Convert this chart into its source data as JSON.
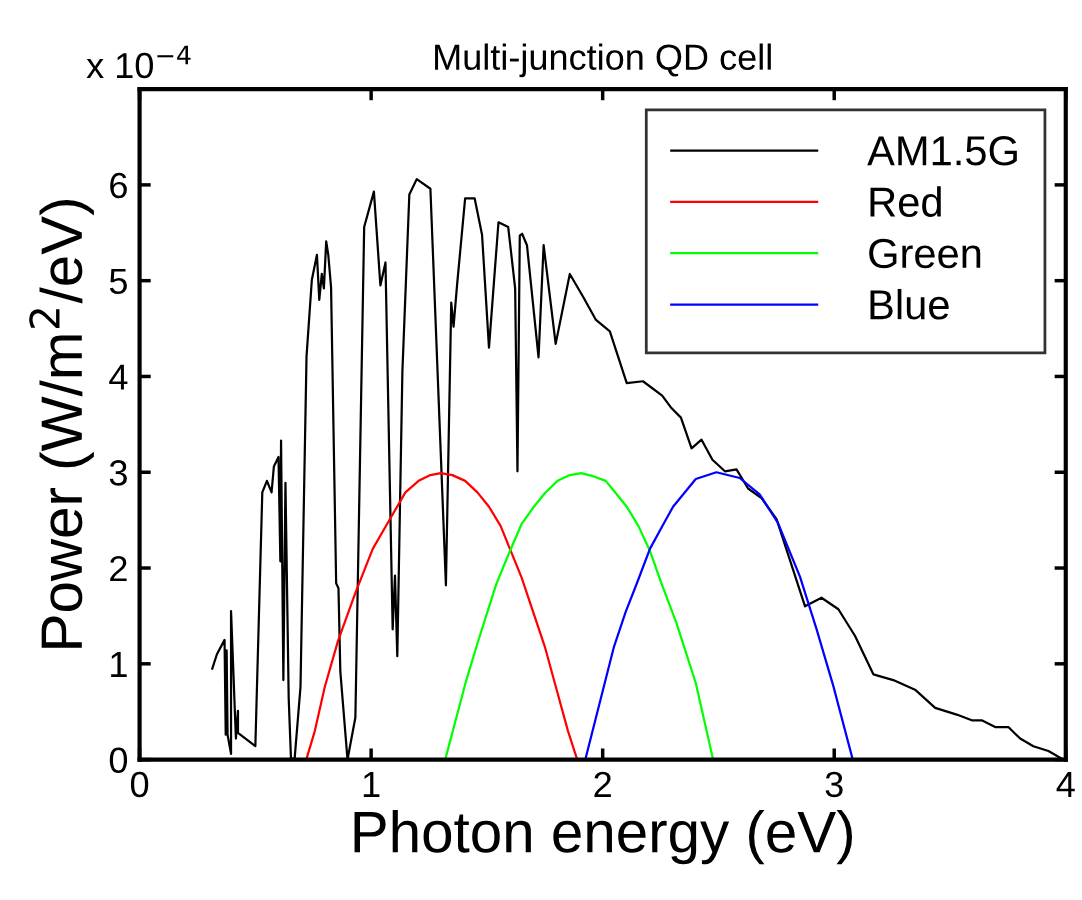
{
  "chart_data": {
    "type": "line",
    "title": "Multi-junction QD cell",
    "xlabel": "Photon energy (eV)",
    "ylabel": "Power (W/m$^{2}$/eV)",
    "annotations": [
      "x 10$^{−4}$"
    ],
    "xlim": [
      0,
      4
    ],
    "xticks": [
      0,
      1,
      2,
      3,
      4
    ],
    "ylim": [
      0,
      7
    ],
    "yticks": [
      0,
      1,
      2,
      3,
      4,
      5,
      6,
      {
        "value": 7,
        "label": null
      }
    ],
    "grid": false,
    "legend": "top right",
    "marker": "none",
    "line_style": "solid",
    "series": [
      {
        "name": "AM1.5G",
        "color": "#000000",
        "x": [
          0.314,
          0.334,
          0.367,
          0.372,
          0.376,
          0.38,
          0.395,
          0.395,
          0.416,
          0.425,
          0.425,
          0.5,
          0.53,
          0.55,
          0.57,
          0.58,
          0.6,
          0.608,
          0.611,
          0.621,
          0.63,
          0.644,
          0.654,
          0.67,
          0.695,
          0.721,
          0.744,
          0.766,
          0.776,
          0.787,
          0.796,
          0.806,
          0.815,
          0.827,
          0.849,
          0.859,
          0.867,
          0.898,
          0.932,
          0.97,
          1.012,
          1.04,
          1.062,
          1.093,
          1.103,
          1.113,
          1.135,
          1.165,
          1.197,
          1.256,
          1.323,
          1.346,
          1.356,
          1.371,
          1.406,
          1.447,
          1.479,
          1.509,
          1.55,
          1.592,
          1.622,
          1.632,
          1.642,
          1.652,
          1.673,
          1.723,
          1.745,
          1.797,
          1.858,
          1.916,
          1.971,
          2.031,
          2.104,
          2.174,
          2.257,
          2.297,
          2.338,
          2.384,
          2.427,
          2.474,
          2.528,
          2.578,
          2.628,
          2.686,
          2.751,
          2.874,
          2.945,
          3.018,
          3.09,
          3.169,
          3.255,
          3.349,
          3.436,
          3.529,
          3.594,
          3.637,
          3.695,
          3.752,
          3.803,
          3.86,
          3.925,
          3.99
        ],
        "values": [
          0.95,
          1.1,
          1.25,
          0.26,
          1.14,
          0.26,
          0.06,
          1.55,
          0.22,
          0.51,
          0.28,
          0.14,
          2.79,
          2.91,
          2.79,
          3.06,
          3.16,
          2.07,
          3.33,
          0.83,
          2.89,
          0.64,
          0.0,
          0.02,
          0.76,
          4.21,
          5.01,
          5.27,
          4.8,
          5.07,
          4.92,
          5.41,
          5.27,
          4.93,
          1.84,
          1.79,
          0.92,
          0.0,
          0.44,
          5.56,
          5.93,
          4.95,
          5.19,
          1.36,
          1.92,
          1.08,
          4.05,
          5.9,
          6.06,
          5.96,
          1.82,
          4.77,
          4.52,
          4.95,
          5.86,
          5.86,
          5.48,
          4.3,
          5.61,
          5.56,
          4.92,
          3.01,
          5.47,
          5.49,
          5.37,
          4.2,
          5.37,
          4.34,
          5.07,
          4.83,
          4.59,
          4.47,
          3.93,
          3.95,
          3.8,
          3.67,
          3.57,
          3.25,
          3.34,
          3.13,
          3.01,
          3.03,
          2.83,
          2.73,
          2.51,
          1.6,
          1.69,
          1.57,
          1.29,
          0.89,
          0.83,
          0.73,
          0.54,
          0.47,
          0.41,
          0.41,
          0.34,
          0.34,
          0.22,
          0.14,
          0.09,
          0.0
        ]
      },
      {
        "name": "Red",
        "color": "#ff0000",
        "x": [
          0.72,
          0.757,
          0.8,
          0.857,
          0.932,
          1.007,
          1.074,
          1.148,
          1.205,
          1.256,
          1.301,
          1.351,
          1.406,
          1.459,
          1.509,
          1.559,
          1.65,
          1.75,
          1.8,
          1.85,
          1.89
        ],
        "values": [
          0.0,
          0.3,
          0.76,
          1.24,
          1.74,
          2.2,
          2.48,
          2.79,
          2.91,
          2.97,
          2.99,
          2.97,
          2.91,
          2.79,
          2.64,
          2.44,
          1.9,
          1.18,
          0.74,
          0.3,
          0.0
        ]
      },
      {
        "name": "Green",
        "color": "#00ff00",
        "x": [
          1.32,
          1.41,
          1.46,
          1.54,
          1.6,
          1.65,
          1.703,
          1.75,
          1.805,
          1.858,
          1.908,
          1.957,
          2.013,
          2.057,
          2.104,
          2.154,
          2.204,
          2.257,
          2.318,
          2.402,
          2.477
        ],
        "values": [
          0.0,
          0.82,
          1.22,
          1.83,
          2.18,
          2.46,
          2.64,
          2.78,
          2.91,
          2.97,
          2.99,
          2.96,
          2.91,
          2.78,
          2.64,
          2.44,
          2.18,
          1.82,
          1.43,
          0.8,
          0.0
        ]
      },
      {
        "name": "Blue",
        "color": "#0000ff",
        "x": [
          1.925,
          1.99,
          2.049,
          2.099,
          2.154,
          2.204,
          2.265,
          2.304,
          2.402,
          2.491,
          2.592,
          2.678,
          2.757,
          2.852,
          2.924,
          2.996,
          3.08
        ],
        "values": [
          0.0,
          0.62,
          1.18,
          1.54,
          1.88,
          2.2,
          2.47,
          2.64,
          2.93,
          3.0,
          2.94,
          2.77,
          2.47,
          1.91,
          1.36,
          0.77,
          0.0
        ]
      }
    ]
  }
}
